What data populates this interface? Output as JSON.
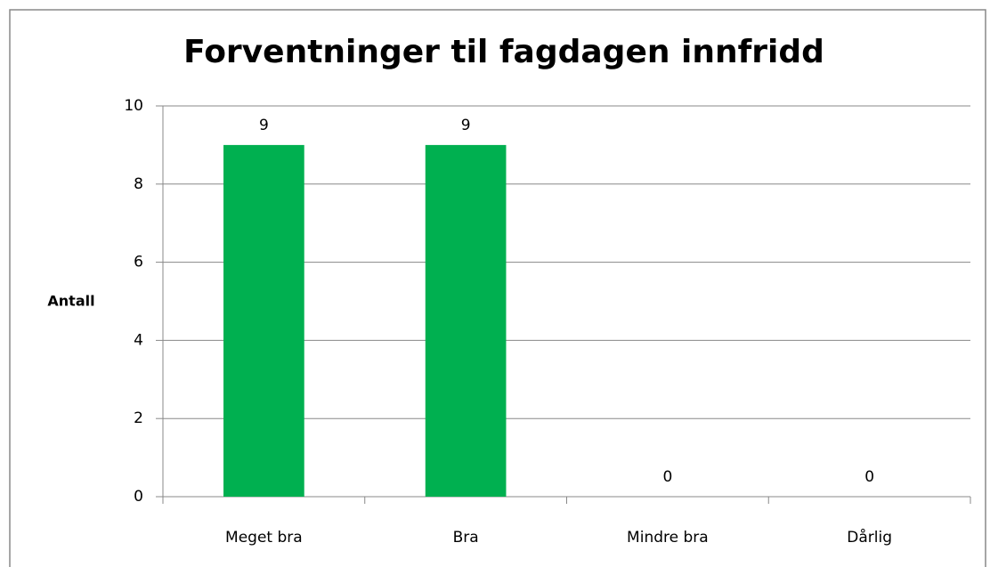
{
  "chart_data": {
    "type": "bar",
    "title": "Forventninger til fagdagen innfridd",
    "y_label": "Antall",
    "categories": [
      "Meget bra",
      "Bra",
      "Mindre bra",
      "Dårlig"
    ],
    "values": [
      9,
      9,
      0,
      0
    ],
    "color": "#00b050",
    "ylim": [
      0,
      10
    ],
    "yticks": [
      0,
      2,
      4,
      6,
      8,
      10
    ],
    "grid": true
  }
}
